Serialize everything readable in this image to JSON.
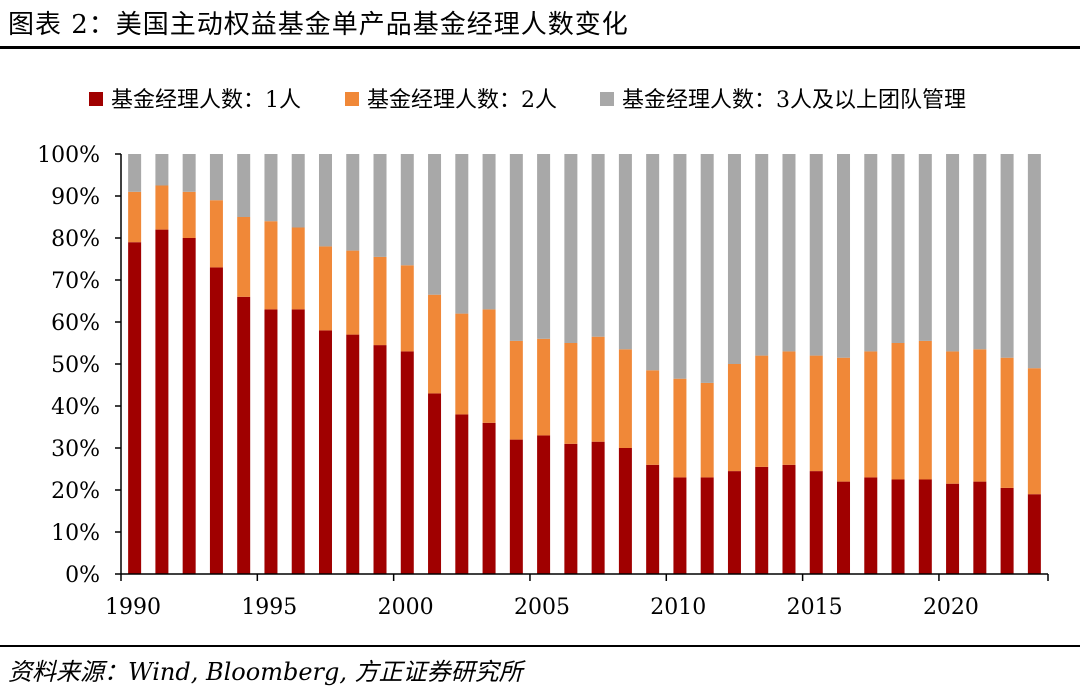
{
  "title": "图表 2：美国主动权益基金单产品基金经理人数变化",
  "source": "资料来源：Wind, Bloomberg, 方正证券研究所",
  "colors": {
    "one_manager": "#A00000",
    "two_managers": "#F08838",
    "team": "#A8A8A8"
  },
  "chart_data": {
    "type": "bar",
    "stacked": true,
    "title": "",
    "xlabel": "",
    "ylabel": "",
    "ylim": [
      0,
      100
    ],
    "yticks": [
      "0%",
      "10%",
      "20%",
      "30%",
      "40%",
      "50%",
      "60%",
      "70%",
      "80%",
      "90%",
      "100%"
    ],
    "xticks": [
      "1990",
      "1995",
      "2000",
      "2005",
      "2010",
      "2015",
      "2020"
    ],
    "legend_position": "top",
    "grid": false,
    "categories": [
      1990,
      1991,
      1992,
      1993,
      1994,
      1995,
      1996,
      1997,
      1998,
      1999,
      2000,
      2001,
      2002,
      2003,
      2004,
      2005,
      2006,
      2007,
      2008,
      2009,
      2010,
      2011,
      2012,
      2013,
      2014,
      2015,
      2016,
      2017,
      2018,
      2019,
      2020,
      2021,
      2022,
      2023
    ],
    "series": [
      {
        "name": "基金经理人数：1人",
        "color": "#A00000",
        "values": [
          79,
          82,
          80,
          73,
          66,
          63,
          63,
          58,
          57,
          54.5,
          53,
          43,
          38,
          36,
          32,
          33,
          31,
          31.5,
          30,
          26,
          23,
          23,
          24.5,
          25.5,
          26,
          24.5,
          22,
          23,
          22.5,
          22.5,
          21.5,
          22,
          20.5,
          19
        ]
      },
      {
        "name": "基金经理人数：2人",
        "color": "#F08838",
        "values": [
          12,
          10.5,
          11,
          16,
          19,
          21,
          19.5,
          20,
          20,
          21,
          20.5,
          23.5,
          24,
          27,
          23.5,
          23,
          24,
          25,
          23.5,
          22.5,
          23.5,
          22.5,
          25.5,
          26.5,
          27,
          27.5,
          29.5,
          30,
          32.5,
          33,
          31.5,
          31.5,
          31,
          30
        ]
      },
      {
        "name": "基金经理人数：3人及以上团队管理",
        "color": "#A8A8A8",
        "values": [
          9,
          7.5,
          9,
          11,
          15,
          16,
          17.5,
          22,
          23,
          24.5,
          26.5,
          33.5,
          38,
          37,
          44.5,
          44,
          45,
          43.5,
          46.5,
          51.5,
          53.5,
          54.5,
          50,
          48,
          47,
          48,
          48.5,
          47,
          45,
          44.5,
          47,
          46.5,
          48.5,
          51
        ]
      }
    ]
  }
}
